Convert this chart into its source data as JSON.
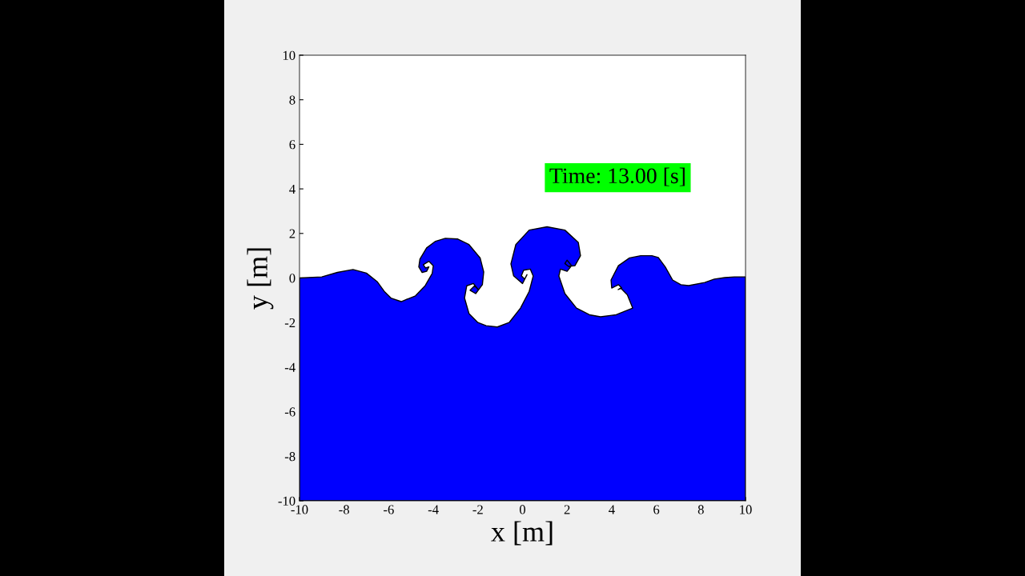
{
  "chart_data": {
    "type": "area",
    "xlabel": "x [m]",
    "ylabel": "y [m]",
    "annotations": [
      "Time: 13.00 [s]"
    ],
    "color": "#0000ff",
    "x": [
      -10,
      -10,
      -9,
      -8.3,
      -7.6,
      -7.0,
      -6.52,
      -6.2,
      -5.9,
      -5.44,
      -4.8,
      -4.36,
      -4.05,
      -4.0,
      -4.2,
      -4.45,
      -4.35,
      -4.2,
      -4.3,
      -4.5,
      -4.65,
      -4.6,
      -4.3,
      -3.9,
      -3.46,
      -2.9,
      -2.4,
      -1.9,
      -1.74,
      -1.8,
      -2.1,
      -2.35,
      -2.15,
      -2.0,
      -2.2,
      -2.5,
      -2.6,
      -2.4,
      -2.0,
      -1.63,
      -1.13,
      -0.6,
      -0.09,
      0.3,
      0.48,
      0.35,
      0.05,
      -0.05,
      0.1,
      0.2,
      0.0,
      -0.4,
      -0.52,
      -0.3,
      0.3,
      1.1,
      1.9,
      2.5,
      2.6,
      2.35,
      2.06,
      1.9,
      2.0,
      2.2,
      2.0,
      1.7,
      1.63,
      1.9,
      2.42,
      3.0,
      3.5,
      4.2,
      4.94,
      4.7,
      4.4,
      4.29,
      4.45,
      4.3,
      4.0,
      3.97,
      4.3,
      4.8,
      5.3,
      5.8,
      6.09,
      6.4,
      6.73,
      7.1,
      7.45,
      8.17,
      8.6,
      9.07,
      9.5,
      10,
      10
    ],
    "values": [
      -10,
      0,
      0.05,
      0.25,
      0.38,
      0.22,
      -0.16,
      -0.6,
      -0.9,
      -1.06,
      -0.8,
      -0.34,
      0.2,
      0.55,
      0.75,
      0.6,
      0.45,
      0.5,
      0.3,
      0.25,
      0.5,
      0.85,
      1.35,
      1.65,
      1.78,
      1.75,
      1.5,
      0.9,
      0.27,
      -0.3,
      -0.7,
      -0.55,
      -0.35,
      -0.5,
      -0.25,
      -0.35,
      -0.9,
      -1.6,
      -2.0,
      -2.14,
      -2.2,
      -2.0,
      -1.35,
      -0.6,
      0.09,
      0.4,
      0.35,
      0.1,
      -0.05,
      0.15,
      -0.25,
      0.1,
      0.63,
      1.5,
      2.15,
      2.3,
      2.15,
      1.6,
      1.0,
      0.55,
      0.52,
      0.65,
      0.8,
      0.55,
      0.3,
      0.4,
      0.09,
      -0.7,
      -1.35,
      -1.65,
      -1.74,
      -1.65,
      -1.35,
      -0.75,
      -0.45,
      -0.52,
      -0.45,
      -0.3,
      -0.45,
      -0.09,
      0.55,
      0.9,
      1.0,
      1.0,
      0.92,
      0.5,
      -0.09,
      -0.3,
      -0.34,
      -0.2,
      -0.05,
      0.02,
      0.05,
      0.05,
      -10
    ],
    "xlim": [
      -10,
      10
    ],
    "ylim": [
      -10,
      10
    ],
    "xticks": [
      -10,
      -8,
      -6,
      -4,
      -2,
      0,
      2,
      4,
      6,
      8,
      10
    ],
    "yticks": [
      -10,
      -8,
      -6,
      -4,
      -2,
      0,
      2,
      4,
      6,
      8,
      10
    ],
    "grid": false,
    "legend": false
  }
}
